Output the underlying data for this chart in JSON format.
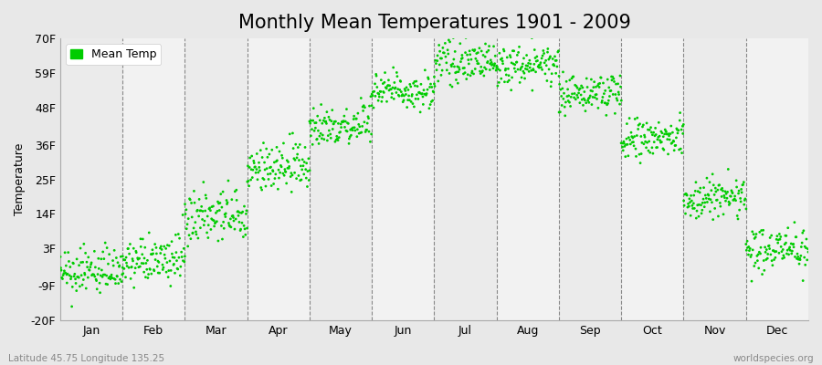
{
  "title": "Monthly Mean Temperatures 1901 - 2009",
  "ylabel": "Temperature",
  "xlabel_bottom_left": "Latitude 45.75 Longitude 135.25",
  "xlabel_bottom_right": "worldspecies.org",
  "legend_label": "Mean Temp",
  "yticks": [
    -20,
    -9,
    3,
    14,
    25,
    36,
    48,
    59,
    70
  ],
  "ytick_labels": [
    "-20F",
    "-9F",
    "3F",
    "14F",
    "25F",
    "36F",
    "48F",
    "59F",
    "70F"
  ],
  "ylim": [
    -20,
    70
  ],
  "months": [
    "Jan",
    "Feb",
    "Mar",
    "Apr",
    "May",
    "Jun",
    "Jul",
    "Aug",
    "Sep",
    "Oct",
    "Nov",
    "Dec"
  ],
  "dot_color": "#00CC00",
  "background_color": "#E8E8E8",
  "plot_bg_color_odd": "#EBEBEB",
  "plot_bg_color_even": "#F2F2F2",
  "n_years": 109,
  "start_year": 1901,
  "monthly_means_F": [
    -5.5,
    -2.0,
    12.0,
    28.0,
    42.0,
    53.0,
    62.0,
    61.0,
    52.0,
    37.0,
    18.0,
    2.0
  ],
  "monthly_stds_F": [
    3.5,
    3.5,
    4.5,
    4.0,
    3.5,
    3.0,
    3.0,
    3.0,
    3.0,
    3.5,
    3.5,
    3.5
  ],
  "monthly_trends_F_per_century": [
    2.0,
    2.0,
    1.5,
    1.5,
    1.0,
    1.0,
    0.5,
    0.5,
    1.0,
    1.5,
    2.0,
    2.0
  ],
  "title_fontsize": 15,
  "axis_label_fontsize": 9,
  "tick_fontsize": 9,
  "legend_fontsize": 9,
  "dot_size": 4
}
